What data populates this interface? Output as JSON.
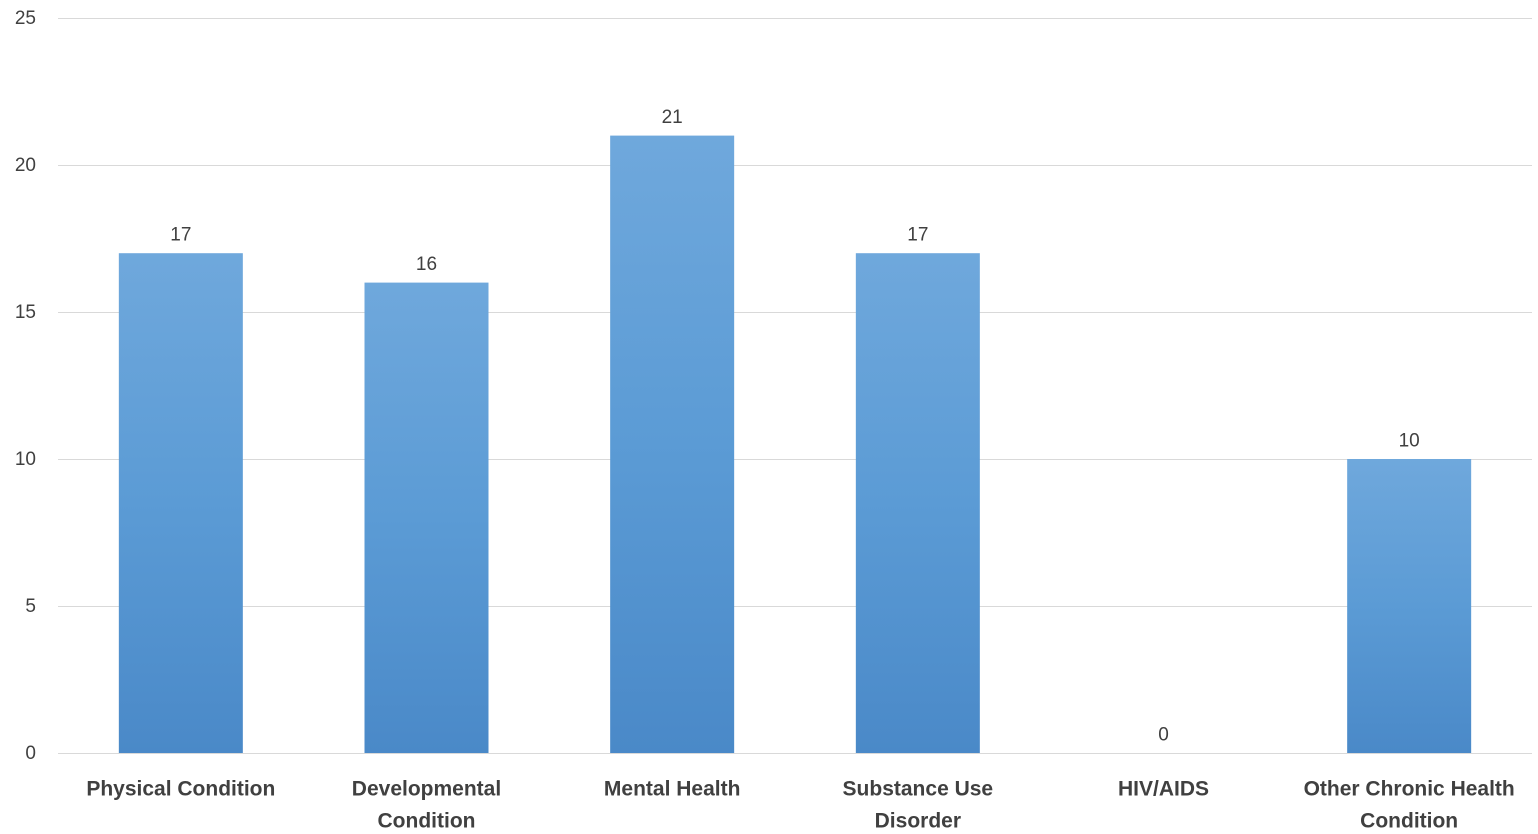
{
  "chart_data": {
    "type": "bar",
    "categories": [
      [
        "Physical Condition"
      ],
      [
        "Developmental",
        "Condition"
      ],
      [
        "Mental Health"
      ],
      [
        "Substance Use",
        "Disorder"
      ],
      [
        "HIV/AIDS"
      ],
      [
        "Other Chronic Health",
        "Condition"
      ]
    ],
    "values": [
      17,
      16,
      21,
      17,
      0,
      10
    ],
    "data_labels": [
      "17",
      "16",
      "21",
      "17",
      "0",
      "10"
    ],
    "ylim": [
      0,
      25
    ],
    "yticks": [
      0,
      5,
      10,
      15,
      20,
      25
    ],
    "grid": true,
    "legend": "none",
    "colors": {
      "bar_top": "#6fa8dc",
      "bar_mid": "#5b9bd5",
      "bar_bottom": "#4a89c8",
      "grid": "#d9d9d9",
      "text": "#404040"
    }
  }
}
